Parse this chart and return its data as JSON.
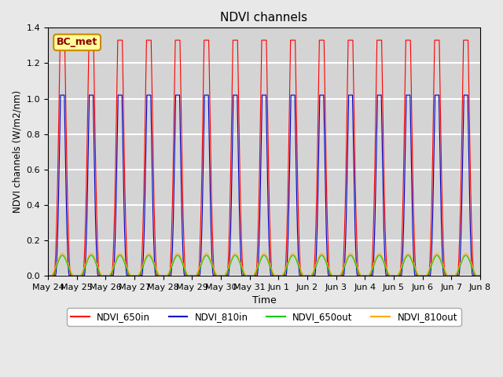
{
  "title": "NDVI channels",
  "ylabel": "NDVI channels (W/m2/nm)",
  "xlabel": "Time",
  "ylim": [
    0,
    1.4
  ],
  "yticks": [
    0.0,
    0.2,
    0.4,
    0.6,
    0.8,
    1.0,
    1.2,
    1.4
  ],
  "legend_labels": [
    "NDVI_650in",
    "NDVI_810in",
    "NDVI_650out",
    "NDVI_810out"
  ],
  "legend_colors": [
    "#ff0000",
    "#0000cc",
    "#00cc00",
    "#ffaa00"
  ],
  "annotation_text": "BC_met",
  "annotation_box_color": "#ffff99",
  "annotation_border_color": "#cc8800",
  "bg_color": "#e8e8e8",
  "plot_bg_color": "#d4d4d4",
  "grid_color": "#ffffff",
  "n_days": 15,
  "peak_650in": 1.33,
  "peak_810in": 1.02,
  "peak_650out": 0.115,
  "peak_810out": 0.125,
  "x_tick_labels": [
    "May 24",
    "May 25",
    "May 26",
    "May 27",
    "May 28",
    "May 29",
    "May 30",
    "May 31",
    "Jun 1",
    "Jun 2",
    "Jun 3",
    "Jun 4",
    "Jun 5",
    "Jun 6",
    "Jun 7",
    "Jun 8"
  ]
}
